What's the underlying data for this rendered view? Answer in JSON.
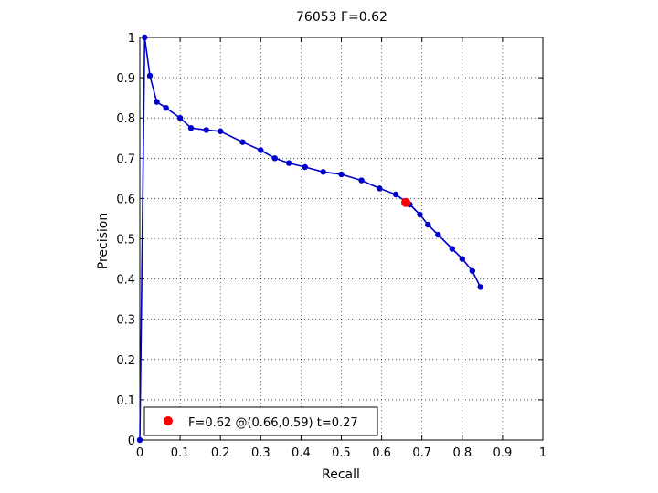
{
  "chart_data": {
    "type": "line",
    "title": "76053 F=0.62",
    "xlabel": "Recall",
    "ylabel": "Precision",
    "xlim": [
      0,
      1
    ],
    "ylim": [
      0,
      1
    ],
    "xticks": [
      "0",
      "0.1",
      "0.2",
      "0.3",
      "0.4",
      "0.5",
      "0.6",
      "0.7",
      "0.8",
      "0.9",
      "1"
    ],
    "yticks": [
      "0",
      "0.1",
      "0.2",
      "0.3",
      "0.4",
      "0.5",
      "0.6",
      "0.7",
      "0.8",
      "0.9",
      "1"
    ],
    "grid": true,
    "series_color": "#0000cc",
    "marker_color": "#ff0000",
    "curve": {
      "x": [
        0.0,
        0.012,
        0.025,
        0.042,
        0.065,
        0.1,
        0.127,
        0.165,
        0.2,
        0.255,
        0.3,
        0.335,
        0.37,
        0.41,
        0.455,
        0.5,
        0.55,
        0.595,
        0.635,
        0.67,
        0.695,
        0.715,
        0.74,
        0.775,
        0.8,
        0.825,
        0.845
      ],
      "y": [
        0.0,
        1.0,
        0.905,
        0.84,
        0.825,
        0.8,
        0.775,
        0.77,
        0.767,
        0.74,
        0.72,
        0.7,
        0.688,
        0.678,
        0.666,
        0.66,
        0.645,
        0.625,
        0.61,
        0.585,
        0.56,
        0.535,
        0.51,
        0.475,
        0.45,
        0.42,
        0.38
      ]
    },
    "best_point": {
      "x": 0.66,
      "y": 0.59
    },
    "legend": {
      "position": "bottom-left",
      "label": "F=0.62 @(0.66,0.59) t=0.27"
    }
  }
}
